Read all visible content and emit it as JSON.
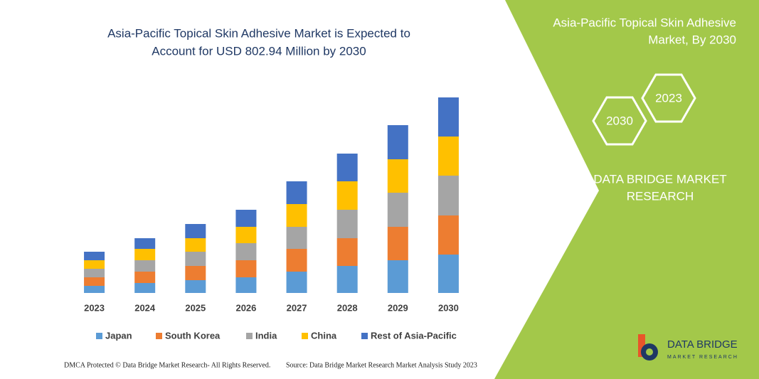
{
  "chart_data": {
    "type": "stacked_bar",
    "title": [
      "Asia-Pacific Topical Skin Adhesive Market is Expected to",
      "Account for USD 802.94 Million by 2030"
    ],
    "categories": [
      "2023",
      "2024",
      "2025",
      "2026",
      "2027",
      "2028",
      "2029",
      "2030"
    ],
    "series": [
      {
        "name": "Japan",
        "color": "#5b9bd5",
        "values": [
          10,
          14,
          18,
          22,
          30,
          38,
          46,
          54
        ]
      },
      {
        "name": "South Korea",
        "color": "#ed7d31",
        "values": [
          12,
          16,
          20,
          24,
          32,
          39,
          47,
          55
        ]
      },
      {
        "name": "India",
        "color": "#a5a5a5",
        "values": [
          12,
          16,
          20,
          24,
          31,
          40,
          48,
          56
        ]
      },
      {
        "name": "China",
        "color": "#ffc000",
        "values": [
          12,
          16,
          19,
          23,
          32,
          40,
          47,
          55
        ]
      },
      {
        "name": "Rest of Asia-Pacific",
        "color": "#4472c4",
        "values": [
          12,
          15,
          20,
          24,
          32,
          39,
          48,
          55
        ]
      }
    ],
    "legend": "bottom"
  },
  "panel": {
    "title": [
      "Asia-Pacific Topical Skin Adhesive",
      "Market, By 2030"
    ],
    "hexagons": [
      "2023",
      "2030"
    ],
    "brand": [
      "DATA BRIDGE MARKET",
      "RESEARCH"
    ],
    "logo": [
      "DATA BRIDGE",
      "MARKET RESEARCH"
    ]
  },
  "footer": {
    "left": "DMCA Protected © Data Bridge Market Research- All Rights Reserved.",
    "right": "Source: Data Bridge Market Research Market Analysis Study 2023"
  }
}
